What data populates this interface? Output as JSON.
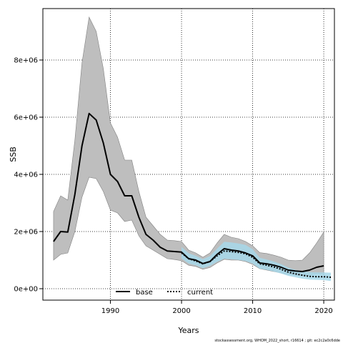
{
  "chart_data": {
    "type": "line",
    "xlabel": "Years",
    "ylabel": "SSB",
    "xlim": [
      1980.5,
      2021.5
    ],
    "ylim": [
      -400000,
      9800000
    ],
    "x_ticks": [
      1990,
      2000,
      2010,
      2020
    ],
    "x_tick_labels": [
      "1990",
      "2000",
      "2010",
      "2020"
    ],
    "y_ticks": [
      0,
      2000000,
      4000000,
      6000000,
      8000000
    ],
    "y_tick_labels": [
      "0e+00",
      "2e+06",
      "4e+06",
      "6e+06",
      "8e+06"
    ],
    "grid": "dotted at major ticks",
    "legend": {
      "position": "bottom-center",
      "entries": [
        "base",
        "current"
      ]
    },
    "footnote": "stockassessment.org, WHOM_2022_short, r16614 ; git: ec2c2a0c6dde",
    "colors": {
      "base_band": "#bebebe",
      "current_band": "#a7d8ea",
      "line": "#000000"
    },
    "series": [
      {
        "name": "base",
        "x": [
          1982,
          1983,
          1984,
          1985,
          1986,
          1987,
          1988,
          1989,
          1990,
          1991,
          1992,
          1993,
          1994,
          1995,
          1996,
          1997,
          1998,
          1999,
          2000,
          2001,
          2002,
          2003,
          2004,
          2005,
          2006,
          2007,
          2008,
          2009,
          2010,
          2011,
          2012,
          2013,
          2014,
          2015,
          2016,
          2017,
          2018,
          2019,
          2020
        ],
        "values": [
          1650000,
          2000000,
          1980000,
          3300000,
          5000000,
          6130000,
          5900000,
          5100000,
          4000000,
          3750000,
          3250000,
          3250000,
          2500000,
          1900000,
          1700000,
          1450000,
          1320000,
          1300000,
          1280000,
          1050000,
          1000000,
          880000,
          950000,
          1200000,
          1400000,
          1350000,
          1320000,
          1250000,
          1150000,
          900000,
          870000,
          820000,
          750000,
          650000,
          620000,
          600000,
          650000,
          750000,
          800000
        ],
        "lower": [
          1000000,
          1200000,
          1250000,
          2000000,
          3200000,
          3900000,
          3850000,
          3400000,
          2750000,
          2650000,
          2350000,
          2400000,
          1850000,
          1500000,
          1350000,
          1200000,
          1050000,
          1020000,
          980000,
          820000,
          780000,
          680000,
          740000,
          900000,
          1030000,
          1000000,
          1000000,
          950000,
          850000,
          700000,
          650000,
          600000,
          550000,
          500000,
          470000,
          450000,
          470000,
          520000,
          500000
        ],
        "upper": [
          2700000,
          3250000,
          3100000,
          5200000,
          7900000,
          9500000,
          9000000,
          7700000,
          5800000,
          5300000,
          4500000,
          4500000,
          3400000,
          2500000,
          2200000,
          1900000,
          1700000,
          1680000,
          1650000,
          1350000,
          1250000,
          1100000,
          1250000,
          1600000,
          1900000,
          1800000,
          1750000,
          1650000,
          1500000,
          1260000,
          1230000,
          1170000,
          1100000,
          1000000,
          980000,
          1000000,
          1250000,
          1600000,
          1980000
        ]
      },
      {
        "name": "current",
        "x": [
          2000,
          2001,
          2002,
          2003,
          2004,
          2005,
          2006,
          2007,
          2008,
          2009,
          2010,
          2011,
          2012,
          2013,
          2014,
          2015,
          2016,
          2017,
          2018,
          2019,
          2020,
          2021
        ],
        "values": [
          1250000,
          1050000,
          970000,
          870000,
          950000,
          1150000,
          1320000,
          1300000,
          1270000,
          1220000,
          1100000,
          870000,
          820000,
          760000,
          680000,
          580000,
          520000,
          470000,
          430000,
          420000,
          420000,
          400000
        ],
        "lower": [
          1060000,
          880000,
          820000,
          720000,
          800000,
          940000,
          1050000,
          1030000,
          1010000,
          970000,
          880000,
          700000,
          660000,
          600000,
          530000,
          450000,
          400000,
          350000,
          320000,
          310000,
          300000,
          270000
        ],
        "upper": [
          1460000,
          1240000,
          1150000,
          1030000,
          1140000,
          1400000,
          1640000,
          1620000,
          1580000,
          1530000,
          1380000,
          1080000,
          1020000,
          950000,
          860000,
          740000,
          660000,
          610000,
          580000,
          570000,
          570000,
          560000
        ]
      }
    ]
  }
}
